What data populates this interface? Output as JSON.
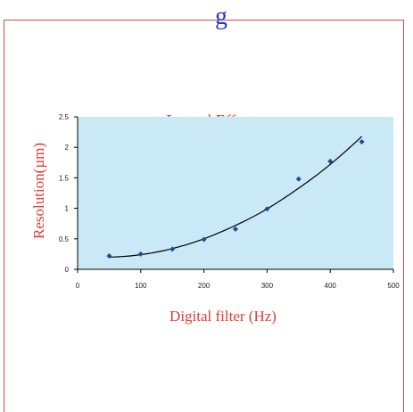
{
  "slide": {
    "heading_fragment": "g"
  },
  "chart_data": {
    "type": "scatter",
    "title": "Lateral Effect",
    "xlabel": "Digital filter (Hz)",
    "ylabel": "Resolution(µm)",
    "xlim": [
      0,
      500
    ],
    "ylim": [
      0,
      2.5
    ],
    "xticks": [
      "0",
      "100",
      "200",
      "300",
      "400",
      "500"
    ],
    "yticks": [
      "0",
      "0.5",
      "1",
      "1.5",
      "2",
      "2.5"
    ],
    "grid": false,
    "legend": "none",
    "plot_background": "#c9e9f7",
    "series": [
      {
        "marker": "diamond",
        "color": "#1f4e8c",
        "x": [
          50,
          100,
          150,
          200,
          250,
          300,
          350,
          400,
          450
        ],
        "y": [
          0.22,
          0.25,
          0.33,
          0.49,
          0.66,
          0.99,
          1.48,
          1.77,
          2.09
        ]
      }
    ],
    "trendline": {
      "type": "polynomial",
      "color": "#000000",
      "x": [
        50,
        100,
        150,
        200,
        250,
        300,
        350,
        400,
        450
      ],
      "y": [
        0.2,
        0.24,
        0.34,
        0.5,
        0.72,
        0.99,
        1.33,
        1.72,
        2.18
      ]
    }
  }
}
